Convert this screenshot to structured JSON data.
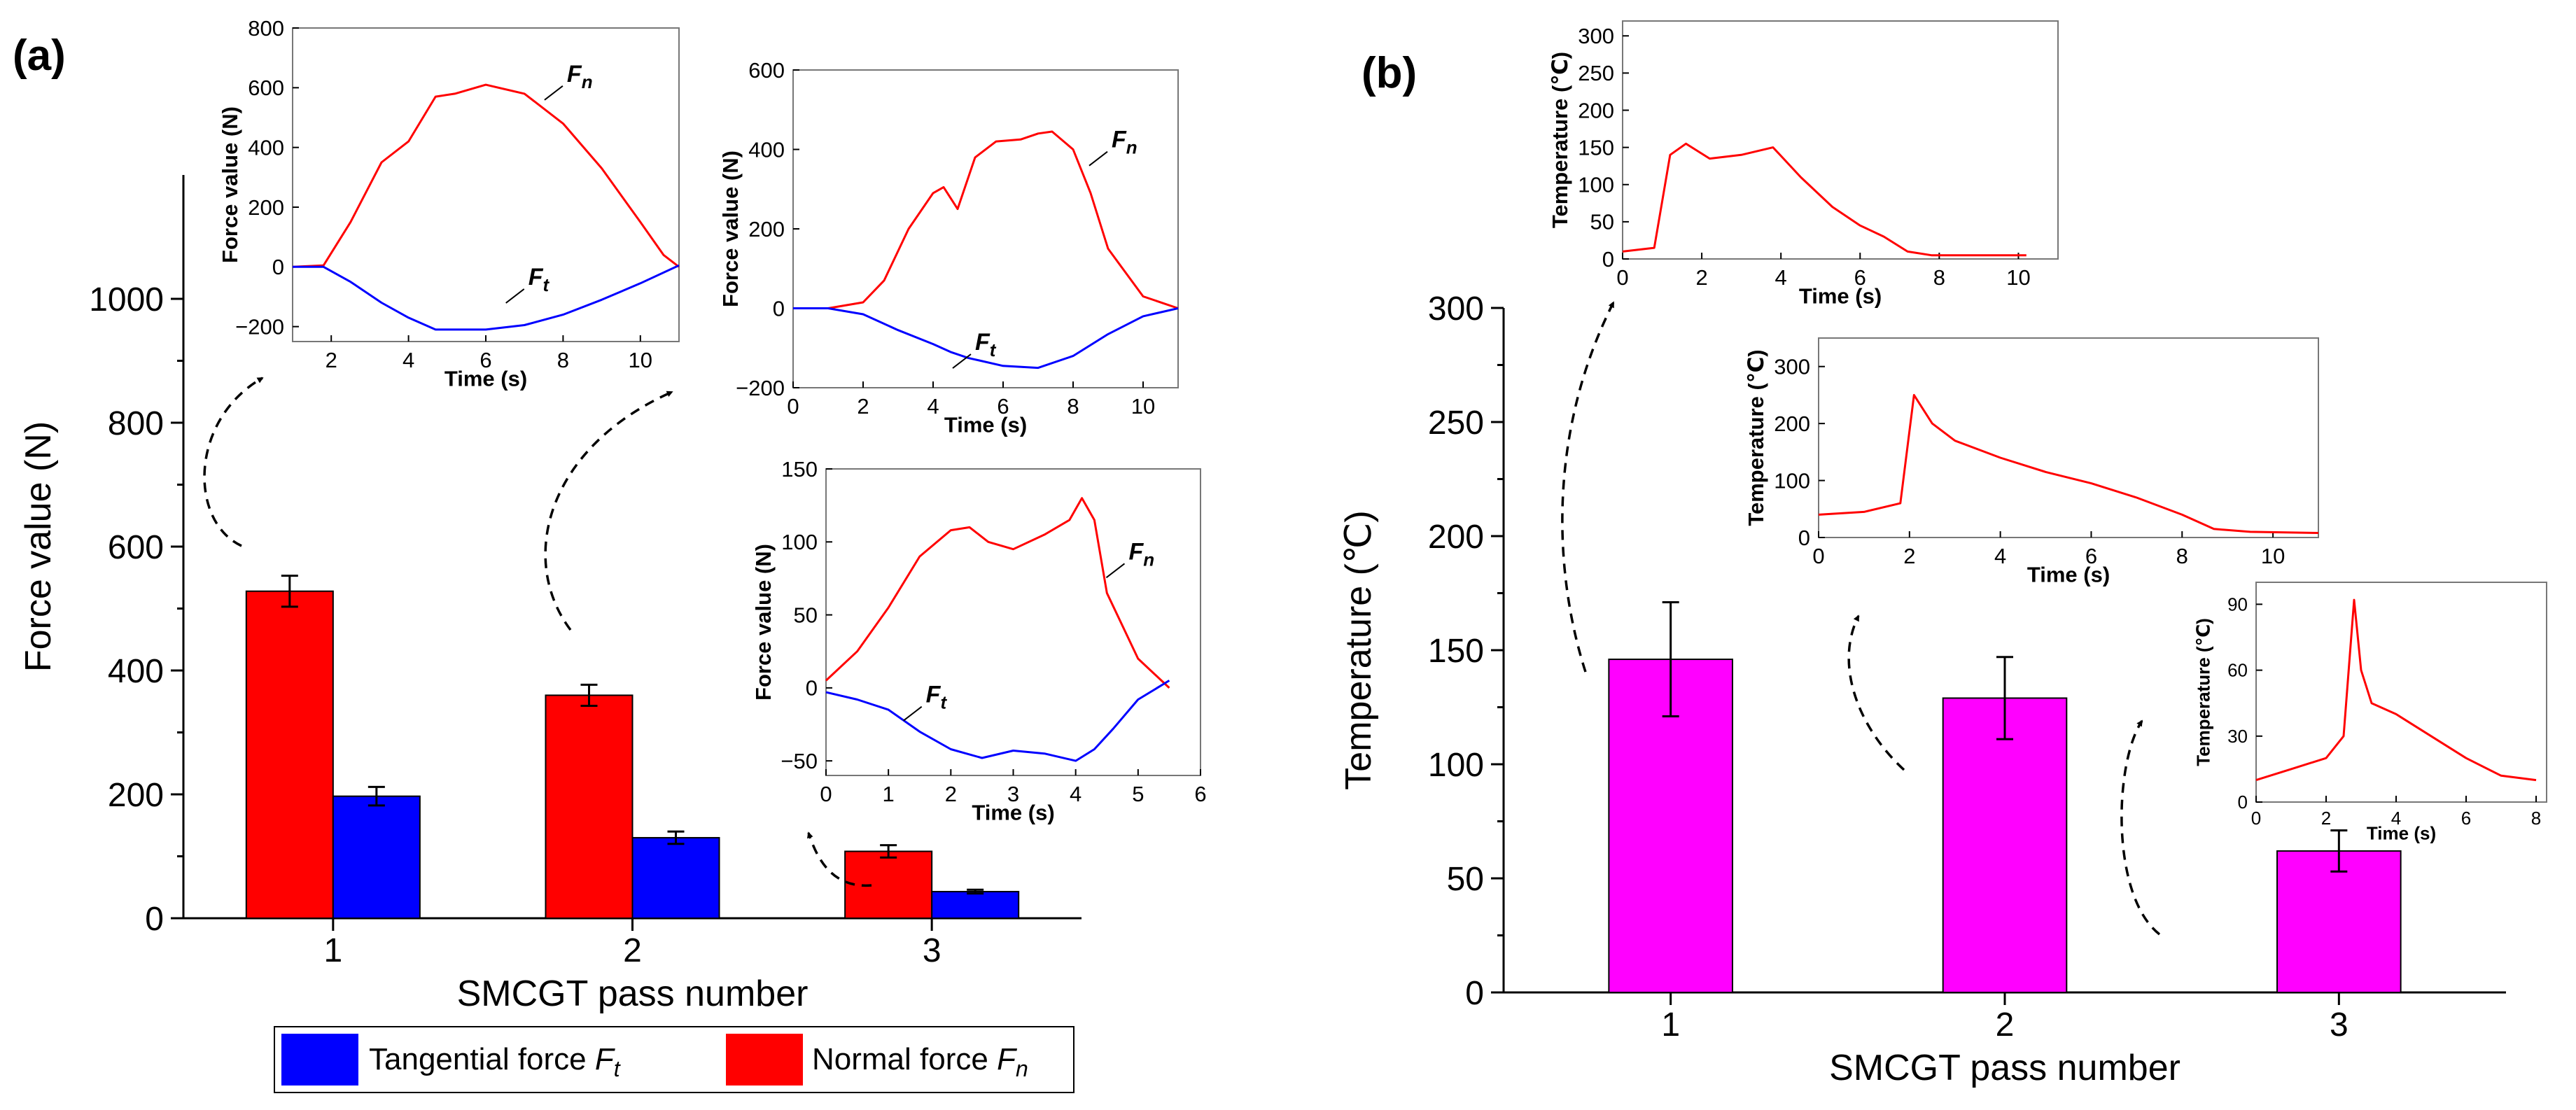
{
  "chart_data": [
    {
      "id": "main-a",
      "panel_label": "(a)",
      "type": "bar",
      "xlabel": "SMCGT pass number",
      "ylabel": "Force value (N)",
      "ylim": [
        0,
        1200
      ],
      "yticks": [
        0,
        200,
        400,
        600,
        800,
        1000
      ],
      "categories": [
        "1",
        "2",
        "3"
      ],
      "series": [
        {
          "name": "Normal force",
          "symbol": "F",
          "sub": "n",
          "color": "#ff0000",
          "values": [
            528,
            360,
            108
          ],
          "errors": [
            25,
            17,
            10
          ]
        },
        {
          "name": "Tangential force",
          "symbol": "F",
          "sub": "t",
          "color": "#0000ff",
          "values": [
            197,
            130,
            43
          ],
          "errors": [
            15,
            10,
            3
          ]
        }
      ],
      "legend_order": [
        1,
        0
      ]
    },
    {
      "id": "inset-a1",
      "type": "line",
      "xlabel": "Time (s)",
      "ylabel": "Force value (N)",
      "xlim": [
        1,
        11
      ],
      "ylim": [
        -250,
        800
      ],
      "xticks": [
        2,
        4,
        6,
        8,
        10
      ],
      "yticks": [
        -200,
        0,
        200,
        400,
        600,
        800
      ],
      "series": [
        {
          "name": "F",
          "sub": "n",
          "color": "#ff0000",
          "x": [
            1,
            1.8,
            2.5,
            3.3,
            4,
            4.7,
            5.2,
            6,
            7,
            8,
            9,
            10,
            10.6,
            11
          ],
          "y": [
            0,
            5,
            150,
            350,
            420,
            570,
            580,
            610,
            580,
            480,
            330,
            150,
            40,
            0
          ]
        },
        {
          "name": "F",
          "sub": "t",
          "color": "#0000ff",
          "x": [
            1,
            1.8,
            2.5,
            3.3,
            4,
            4.7,
            6,
            7,
            8,
            9,
            10,
            11
          ],
          "y": [
            0,
            0,
            -50,
            -120,
            -170,
            -210,
            -210,
            -195,
            -160,
            -110,
            -55,
            5
          ]
        }
      ],
      "annotations": [
        {
          "symbol": "F",
          "sub": "n",
          "x": 8.1,
          "y": 620
        },
        {
          "symbol": "F",
          "sub": "t",
          "x": 7.1,
          "y": -60
        }
      ]
    },
    {
      "id": "inset-a2",
      "type": "line",
      "xlabel": "Time (s)",
      "ylabel": "Force value (N)",
      "xlim": [
        0,
        11
      ],
      "ylim": [
        -200,
        600
      ],
      "xticks": [
        0,
        2,
        4,
        6,
        8,
        10
      ],
      "yticks": [
        -200,
        0,
        200,
        400,
        600
      ],
      "series": [
        {
          "name": "F",
          "sub": "n",
          "color": "#ff0000",
          "x": [
            0,
            1,
            2,
            2.6,
            3.3,
            4,
            4.3,
            4.7,
            5.2,
            5.8,
            6.5,
            7,
            7.4,
            8,
            8.5,
            9,
            10,
            11
          ],
          "y": [
            0,
            0,
            15,
            70,
            200,
            290,
            305,
            250,
            380,
            420,
            425,
            440,
            445,
            400,
            290,
            150,
            30,
            0
          ]
        },
        {
          "name": "F",
          "sub": "t",
          "color": "#0000ff",
          "x": [
            0,
            1,
            2,
            3,
            4,
            4.5,
            5,
            6,
            7,
            8,
            9,
            10,
            11
          ],
          "y": [
            0,
            0,
            -15,
            -55,
            -90,
            -110,
            -125,
            -145,
            -150,
            -120,
            -65,
            -20,
            0
          ]
        }
      ],
      "annotations": [
        {
          "symbol": "F",
          "sub": "n",
          "x": 9.1,
          "y": 405
        },
        {
          "symbol": "F",
          "sub": "t",
          "x": 5.2,
          "y": -105
        }
      ]
    },
    {
      "id": "inset-a3",
      "type": "line",
      "xlabel": "Time (s)",
      "ylabel": "Force value (N)",
      "xlim": [
        0,
        6
      ],
      "ylim": [
        -60,
        150
      ],
      "xticks": [
        0,
        1,
        2,
        3,
        4,
        5,
        6
      ],
      "yticks": [
        -50,
        0,
        50,
        100,
        150
      ],
      "series": [
        {
          "name": "F",
          "sub": "n",
          "color": "#ff0000",
          "x": [
            0,
            0.5,
            1,
            1.5,
            2,
            2.3,
            2.6,
            3,
            3.5,
            3.9,
            4.1,
            4.3,
            4.5,
            5,
            5.5
          ],
          "y": [
            5,
            25,
            55,
            90,
            108,
            110,
            100,
            95,
            105,
            115,
            130,
            115,
            65,
            20,
            0
          ]
        },
        {
          "name": "F",
          "sub": "t",
          "color": "#0000ff",
          "x": [
            0,
            0.5,
            1,
            1.5,
            2,
            2.5,
            3,
            3.5,
            4,
            4.3,
            4.6,
            5,
            5.5
          ],
          "y": [
            -3,
            -8,
            -15,
            -30,
            -42,
            -48,
            -43,
            -45,
            -50,
            -42,
            -28,
            -8,
            5
          ]
        }
      ],
      "annotations": [
        {
          "symbol": "F",
          "sub": "n",
          "x": 4.85,
          "y": 88
        },
        {
          "symbol": "F",
          "sub": "t",
          "x": 1.6,
          "y": -10
        }
      ]
    },
    {
      "id": "main-b",
      "panel_label": "(b)",
      "type": "bar",
      "xlabel": "SMCGT pass number",
      "ylabel": "Temperature (℃)",
      "ylim": [
        0,
        300
      ],
      "yticks": [
        0,
        50,
        100,
        150,
        200,
        250,
        300
      ],
      "categories": [
        "1",
        "2",
        "3"
      ],
      "series": [
        {
          "name": "Temperature",
          "color": "#ff00ff",
          "values": [
            146,
            129,
            62
          ],
          "errors": [
            25,
            18,
            9
          ]
        }
      ]
    },
    {
      "id": "inset-b1",
      "type": "line",
      "xlabel": "Time (s)",
      "ylabel": "Temperature (℃)",
      "xlim": [
        0,
        11
      ],
      "ylim": [
        0,
        320
      ],
      "xticks": [
        0,
        2,
        4,
        6,
        8,
        10
      ],
      "yticks": [
        0,
        50,
        100,
        150,
        200,
        250,
        300
      ],
      "series": [
        {
          "name": "Temperature",
          "color": "#ff0000",
          "x": [
            0,
            0.8,
            1.2,
            1.6,
            2.2,
            3,
            3.8,
            4.5,
            5.3,
            6,
            6.6,
            7.2,
            7.8,
            10.2
          ],
          "y": [
            10,
            15,
            140,
            155,
            135,
            140,
            150,
            110,
            70,
            45,
            30,
            10,
            5,
            5
          ]
        }
      ]
    },
    {
      "id": "inset-b2",
      "type": "line",
      "xlabel": "Time (s)",
      "ylabel": "Temperature (℃)",
      "xlim": [
        0,
        11
      ],
      "ylim": [
        0,
        350
      ],
      "xticks": [
        0,
        2,
        4,
        6,
        8,
        10
      ],
      "yticks": [
        0,
        100,
        200,
        300
      ],
      "series": [
        {
          "name": "Temperature",
          "color": "#ff0000",
          "x": [
            0,
            1,
            1.8,
            2.1,
            2.5,
            3,
            4,
            5,
            6,
            7,
            8,
            8.7,
            9.5,
            11
          ],
          "y": [
            40,
            45,
            60,
            250,
            200,
            170,
            140,
            115,
            95,
            70,
            40,
            15,
            10,
            8
          ]
        }
      ]
    },
    {
      "id": "inset-b3",
      "type": "line",
      "xlabel": "Time (s)",
      "ylabel": "Temperature (℃)",
      "xlim": [
        0,
        8.3
      ],
      "ylim": [
        0,
        100
      ],
      "xticks": [
        0,
        2,
        4,
        6,
        8
      ],
      "yticks": [
        0,
        30,
        60,
        90
      ],
      "series": [
        {
          "name": "Temperature",
          "color": "#ff0000",
          "x": [
            0,
            1,
            2,
            2.5,
            2.8,
            3,
            3.3,
            4,
            5,
            6,
            7,
            8
          ],
          "y": [
            10,
            15,
            20,
            30,
            92,
            60,
            45,
            40,
            30,
            20,
            12,
            10
          ]
        }
      ]
    }
  ]
}
